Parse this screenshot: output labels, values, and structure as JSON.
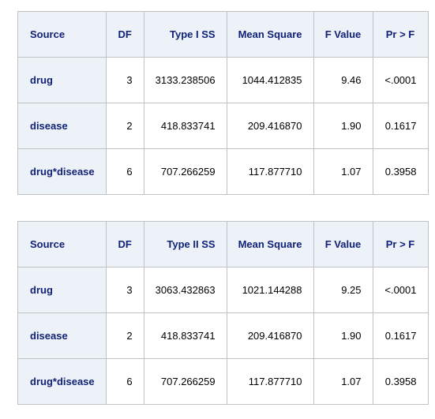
{
  "tables": [
    {
      "headers": [
        "Source",
        "DF",
        "Type I SS",
        "Mean Square",
        "F Value",
        "Pr > F"
      ],
      "rows": [
        {
          "source": "drug",
          "df": "3",
          "ss": "3133.238506",
          "ms": "1044.412835",
          "f": "9.46",
          "p": "<.0001"
        },
        {
          "source": "disease",
          "df": "2",
          "ss": "418.833741",
          "ms": "209.416870",
          "f": "1.90",
          "p": "0.1617"
        },
        {
          "source": "drug*disease",
          "df": "6",
          "ss": "707.266259",
          "ms": "117.877710",
          "f": "1.07",
          "p": "0.3958"
        }
      ]
    },
    {
      "headers": [
        "Source",
        "DF",
        "Type II SS",
        "Mean Square",
        "F Value",
        "Pr > F"
      ],
      "rows": [
        {
          "source": "drug",
          "df": "3",
          "ss": "3063.432863",
          "ms": "1021.144288",
          "f": "9.25",
          "p": "<.0001"
        },
        {
          "source": "disease",
          "df": "2",
          "ss": "418.833741",
          "ms": "209.416870",
          "f": "1.90",
          "p": "0.1617"
        },
        {
          "source": "drug*disease",
          "df": "6",
          "ss": "707.266259",
          "ms": "117.877710",
          "f": "1.07",
          "p": "0.3958"
        }
      ]
    }
  ],
  "colors": {
    "header_background": "#edf2f9",
    "header_text": "#112277",
    "border": "#c1c1c1"
  }
}
